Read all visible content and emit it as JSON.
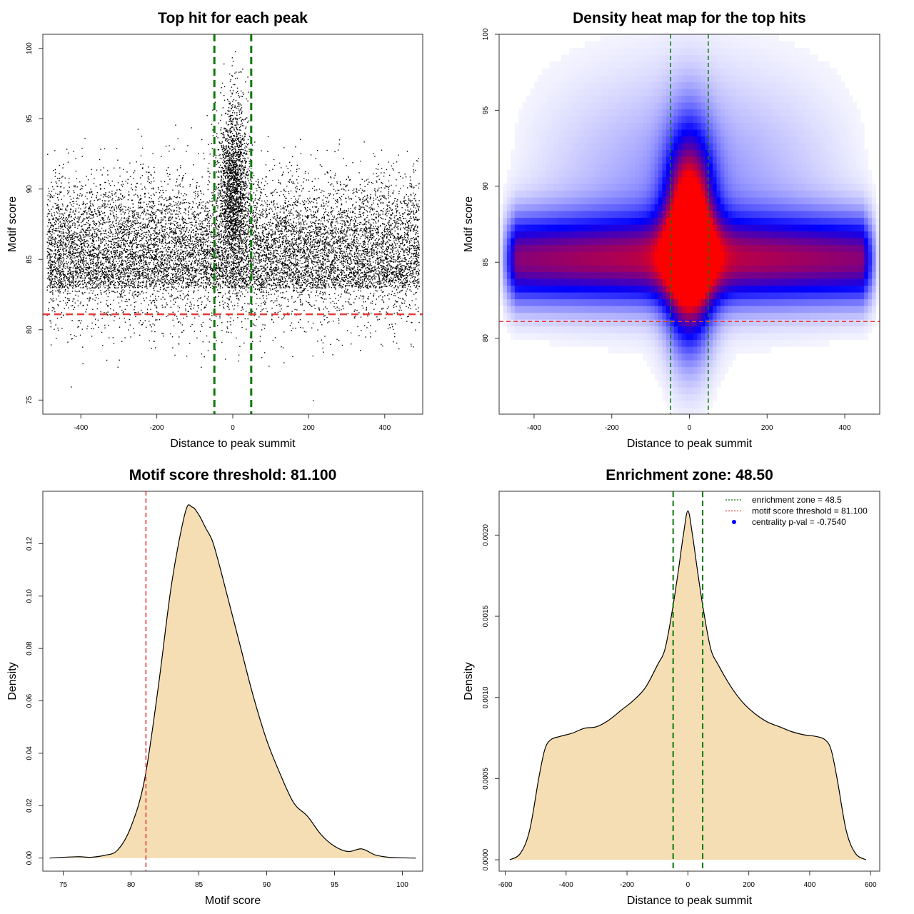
{
  "chart_data": [
    {
      "id": "scatter",
      "type": "scatter",
      "title": "Top hit for each peak",
      "xlabel": "Distance to peak summit",
      "ylabel": "Motif score",
      "xlim": [
        -500,
        500
      ],
      "ylim": [
        74,
        101
      ],
      "xticks": [
        -400,
        -200,
        0,
        200,
        400
      ],
      "xtick_labels": [
        "-400",
        "-200",
        "0",
        "200",
        "400"
      ],
      "yticks": [
        75,
        80,
        85,
        90,
        95,
        100
      ],
      "ytick_labels": [
        "75",
        "80",
        "85",
        "90",
        "95",
        "100"
      ],
      "point_color": "#000000",
      "n_points_approx": 14000,
      "distribution": {
        "x_range": [
          -490,
          490
        ],
        "background_score_mean": 85.5,
        "background_score_sd": 2.6,
        "central_score_mean": 90.5,
        "central_score_sd": 3.0,
        "central_x_sd": 20
      },
      "threshold": {
        "value": 81.1,
        "color": "#e23a3a"
      },
      "enrichment_lines": {
        "values": [
          -48.5,
          48.5
        ],
        "color": "#0b7a0b"
      }
    },
    {
      "id": "heatmap",
      "type": "heatmap",
      "title": "Density heat map for the top hits",
      "xlabel": "Distance to peak summit",
      "ylabel": "Motif score",
      "xlim": [
        -490,
        490
      ],
      "ylim": [
        75,
        100
      ],
      "xticks": [
        -400,
        -200,
        0,
        200,
        400
      ],
      "xtick_labels": [
        "-400",
        "-200",
        "0",
        "200",
        "400"
      ],
      "yticks": [
        80,
        85,
        90,
        95,
        100
      ],
      "ytick_labels": [
        "80",
        "85",
        "90",
        "95",
        "100"
      ],
      "colors": {
        "low": "#ffffff",
        "mid": "#0000ff",
        "high": "#ff0000"
      },
      "threshold": {
        "value": 81.1,
        "color": "#e23a3a"
      },
      "enrichment_lines": {
        "values": [
          -48.5,
          48.5
        ],
        "color": "#0b7a0b"
      }
    },
    {
      "id": "score-density",
      "type": "area",
      "title": "Motif score threshold: 81.100",
      "xlabel": "Motif score",
      "ylabel": "Density",
      "xlim": [
        73.5,
        101.5
      ],
      "ylim": [
        -0.005,
        0.14
      ],
      "xticks": [
        75,
        80,
        85,
        90,
        95,
        100
      ],
      "xtick_labels": [
        "75",
        "80",
        "85",
        "90",
        "95",
        "100"
      ],
      "yticks": [
        0,
        0.02,
        0.04,
        0.06,
        0.08,
        0.1,
        0.12
      ],
      "ytick_labels": [
        "0.00",
        "0.02",
        "0.04",
        "0.06",
        "0.08",
        "0.10",
        "0.12"
      ],
      "fill_color": "#f5deb3",
      "x": [
        74,
        76,
        77,
        78,
        79,
        80,
        81,
        82,
        83,
        84,
        84.5,
        85,
        85.5,
        86,
        86.5,
        87,
        88,
        89,
        90,
        91,
        92,
        93,
        94,
        95,
        96,
        97,
        98,
        99,
        100,
        101
      ],
      "y": [
        0,
        0.0005,
        0.0003,
        0.001,
        0.003,
        0.012,
        0.03,
        0.065,
        0.105,
        0.132,
        0.134,
        0.131,
        0.126,
        0.121,
        0.112,
        0.102,
        0.082,
        0.062,
        0.045,
        0.032,
        0.021,
        0.016,
        0.009,
        0.0045,
        0.0025,
        0.0035,
        0.0012,
        0.0003,
        0.0001,
        0
      ],
      "threshold": {
        "value": 81.1,
        "color": "#e23a3a"
      }
    },
    {
      "id": "distance-density",
      "type": "area",
      "title": "Enrichment zone: 48.50",
      "xlabel": "Distance to peak summit",
      "ylabel": "Density",
      "xlim": [
        -620,
        630
      ],
      "ylim": [
        -7e-05,
        0.00227
      ],
      "xticks": [
        -600,
        -400,
        -200,
        0,
        200,
        400,
        600
      ],
      "xtick_labels": [
        "-600",
        "-400",
        "-200",
        "0",
        "200",
        "400",
        "600"
      ],
      "yticks": [
        0,
        0.0005,
        0.001,
        0.0015,
        0.002
      ],
      "ytick_labels": [
        "0.0000",
        "0.0005",
        "0.0010",
        "0.0015",
        "0.0020"
      ],
      "fill_color": "#f5deb3",
      "x": [
        -585,
        -550,
        -520,
        -490,
        -470,
        -450,
        -420,
        -380,
        -340,
        -300,
        -260,
        -220,
        -180,
        -140,
        -100,
        -75,
        -50,
        -30,
        -15,
        0,
        15,
        30,
        50,
        75,
        100,
        140,
        180,
        220,
        260,
        300,
        340,
        380,
        420,
        450,
        470,
        490,
        520,
        550,
        585
      ],
      "y": [
        0,
        4e-05,
        0.00018,
        0.0005,
        0.00068,
        0.00074,
        0.00076,
        0.00078,
        0.00081,
        0.00082,
        0.00086,
        0.00092,
        0.00098,
        0.00106,
        0.0012,
        0.0013,
        0.00155,
        0.0018,
        0.002,
        0.00215,
        0.002,
        0.0018,
        0.00155,
        0.0013,
        0.0012,
        0.00107,
        0.00097,
        0.0009,
        0.00085,
        0.00082,
        0.00079,
        0.00077,
        0.00076,
        0.00074,
        0.00068,
        0.0005,
        0.00018,
        4e-05,
        0
      ],
      "enrichment_lines": {
        "values": [
          -48.5,
          48.5
        ],
        "color": "#0b7a0b"
      },
      "legend": {
        "position": "top-right",
        "entries": [
          {
            "label": "enrichment zone = 48.5",
            "color": "#0b7a0b",
            "style": "dotted-line"
          },
          {
            "label": "motif score threshold = 81.100",
            "color": "#e23a3a",
            "style": "dotted-line"
          },
          {
            "label": "centrality p-val = -0.7540",
            "color": "#0000ff",
            "style": "point"
          }
        ]
      }
    }
  ]
}
